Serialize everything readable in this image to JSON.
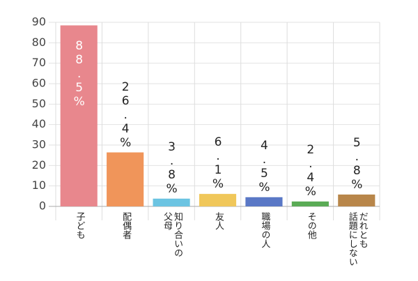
{
  "chart_data": {
    "type": "bar",
    "categories": [
      "子ども",
      "配偶者",
      "知り合いの\n父母",
      "友人",
      "職場の人",
      "その他",
      "だれとも\n話題にしない"
    ],
    "values": [
      88.5,
      26.4,
      3.8,
      6.1,
      4.5,
      2.4,
      5.8
    ],
    "value_labels": [
      "88.5%",
      "26.4%",
      "3.8%",
      "6.1%",
      "4.5%",
      "2.4%",
      "5.8%"
    ],
    "colors": [
      "#e8878d",
      "#f0955a",
      "#6cc4e2",
      "#f0c75a",
      "#5a78c6",
      "#5aab55",
      "#b8864a"
    ],
    "ylim": [
      0,
      90
    ],
    "yticks": [
      0,
      10,
      20,
      30,
      40,
      50,
      60,
      70,
      80,
      90
    ],
    "grid": true
  }
}
